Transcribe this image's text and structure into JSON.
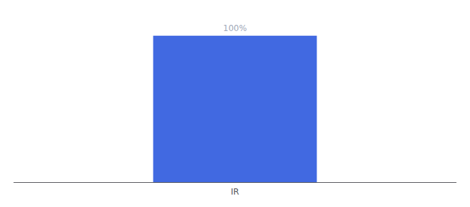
{
  "chart_data": {
    "type": "bar",
    "categories": [
      "IR"
    ],
    "values": [
      100
    ],
    "value_labels": [
      "100%"
    ],
    "data_labels": true,
    "color": "#4169e1",
    "ylim": [
      0,
      115
    ],
    "tick_labels": "x",
    "grid": false
  }
}
